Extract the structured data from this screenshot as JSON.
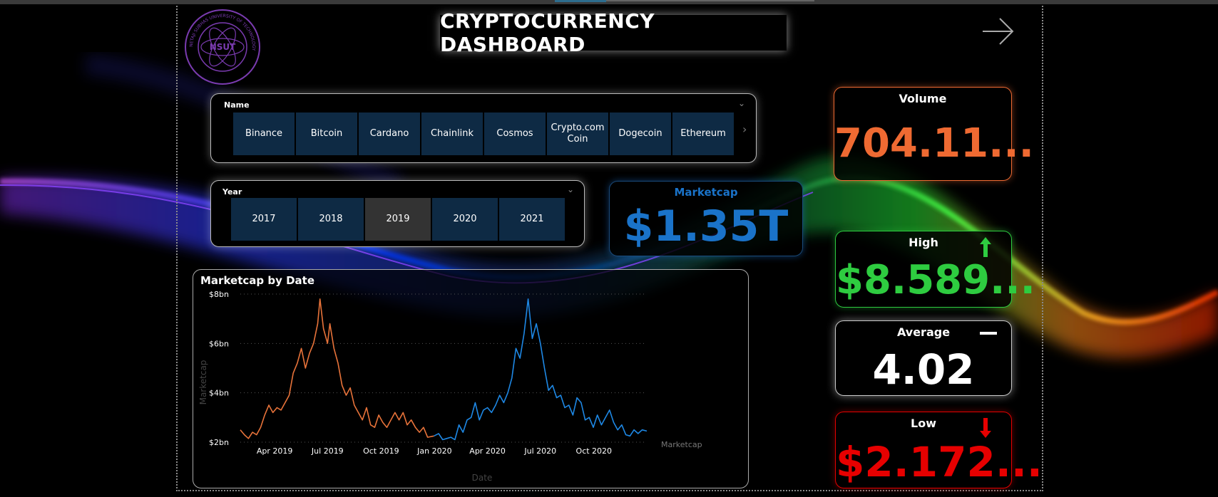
{
  "dashboard": {
    "title": "CRYPTOCURRENCY DASHBOARD"
  },
  "logo": {
    "text": "NSUT",
    "ring_text": "NETAJI SUBHAS UNIVERSITY OF TECHNOLOGY"
  },
  "name_slicer": {
    "title": "Name",
    "items": [
      "Binance",
      "Bitcoin",
      "Cardano",
      "Chainlink",
      "Cosmos",
      "Crypto.com Coin",
      "Dogecoin",
      "Ethereum"
    ]
  },
  "year_slicer": {
    "title": "Year",
    "items": [
      "2017",
      "2018",
      "2019",
      "2020",
      "2021"
    ],
    "selected": "2019"
  },
  "cards": {
    "marketcap": {
      "label": "Marketcap",
      "value": "$1.35T"
    },
    "volume": {
      "label": "Volume",
      "value": "704.11..."
    },
    "high": {
      "label": "High",
      "value": "$8.589..."
    },
    "average": {
      "label": "Average",
      "value": "4.02"
    },
    "low": {
      "label": "Low",
      "value": "$2.172..."
    }
  },
  "colors": {
    "series_2019": "#e8733a",
    "series_2020": "#1e88e5",
    "volume": "#ef6a32",
    "marketcap": "#1a73c9",
    "high": "#2ecc40",
    "low": "#e60000",
    "average": "#ffffff"
  },
  "icons": {
    "high": "arrow-up-icon",
    "average": "dash-icon",
    "low": "arrow-down-icon",
    "nav": "arrow-right-icon"
  },
  "chart_data": {
    "type": "line",
    "title": "Marketcap by Date",
    "xlabel": "Date",
    "ylabel": "Marketcap",
    "ylim": [
      2,
      8
    ],
    "y_ticks": [
      2,
      4,
      6,
      8
    ],
    "y_tick_labels": [
      "$2bn",
      "$4bn",
      "$6bn",
      "$8bn"
    ],
    "x_range": [
      "2019-02-01",
      "2020-12-31"
    ],
    "x_ticks": [
      "2019-04-01",
      "2019-07-01",
      "2019-10-01",
      "2020-01-01",
      "2020-04-01",
      "2020-07-01",
      "2020-10-01"
    ],
    "x_tick_labels": [
      "Apr 2019",
      "Jul 2019",
      "Oct 2019",
      "Jan 2020",
      "Apr 2020",
      "Jul 2020",
      "Oct 2020"
    ],
    "legend": "Marketcap",
    "grid": true,
    "series": [
      {
        "points": [
          [
            "2019-02-01",
            2.5
          ],
          [
            "2019-02-08",
            2.3
          ],
          [
            "2019-02-15",
            2.15
          ],
          [
            "2019-02-22",
            2.4
          ],
          [
            "2019-03-01",
            2.3
          ],
          [
            "2019-03-08",
            2.6
          ],
          [
            "2019-03-15",
            3.1
          ],
          [
            "2019-03-22",
            3.5
          ],
          [
            "2019-03-29",
            3.2
          ],
          [
            "2019-04-05",
            3.4
          ],
          [
            "2019-04-12",
            3.3
          ],
          [
            "2019-04-19",
            3.6
          ],
          [
            "2019-04-26",
            3.9
          ],
          [
            "2019-05-03",
            4.8
          ],
          [
            "2019-05-10",
            5.2
          ],
          [
            "2019-05-17",
            5.8
          ],
          [
            "2019-05-24",
            5.0
          ],
          [
            "2019-05-31",
            5.6
          ],
          [
            "2019-06-07",
            6.0
          ],
          [
            "2019-06-14",
            6.8
          ],
          [
            "2019-06-18",
            7.8
          ],
          [
            "2019-06-24",
            6.6
          ],
          [
            "2019-07-01",
            6.0
          ],
          [
            "2019-07-05",
            6.8
          ],
          [
            "2019-07-12",
            5.8
          ],
          [
            "2019-07-19",
            5.2
          ],
          [
            "2019-07-26",
            4.3
          ],
          [
            "2019-08-02",
            3.9
          ],
          [
            "2019-08-09",
            4.2
          ],
          [
            "2019-08-16",
            3.5
          ],
          [
            "2019-08-23",
            3.2
          ],
          [
            "2019-08-30",
            2.9
          ],
          [
            "2019-09-06",
            3.4
          ],
          [
            "2019-09-13",
            2.7
          ],
          [
            "2019-09-20",
            2.6
          ],
          [
            "2019-09-27",
            3.1
          ],
          [
            "2019-10-04",
            2.8
          ],
          [
            "2019-10-11",
            2.6
          ],
          [
            "2019-10-18",
            2.9
          ],
          [
            "2019-10-25",
            3.2
          ],
          [
            "2019-11-01",
            2.9
          ],
          [
            "2019-11-08",
            3.2
          ],
          [
            "2019-11-15",
            2.7
          ],
          [
            "2019-11-22",
            2.9
          ],
          [
            "2019-11-29",
            2.6
          ],
          [
            "2019-12-06",
            2.4
          ],
          [
            "2019-12-13",
            2.6
          ],
          [
            "2019-12-20",
            2.2
          ],
          [
            "2019-12-31",
            2.25
          ]
        ]
      },
      {
        "points": [
          [
            "2019-12-31",
            2.25
          ],
          [
            "2020-01-08",
            2.35
          ],
          [
            "2020-01-15",
            2.1
          ],
          [
            "2020-01-22",
            2.15
          ],
          [
            "2020-01-29",
            2.2
          ],
          [
            "2020-02-05",
            2.1
          ],
          [
            "2020-02-12",
            2.7
          ],
          [
            "2020-02-19",
            2.4
          ],
          [
            "2020-02-26",
            2.9
          ],
          [
            "2020-03-04",
            3.0
          ],
          [
            "2020-03-11",
            3.6
          ],
          [
            "2020-03-18",
            2.9
          ],
          [
            "2020-03-25",
            3.3
          ],
          [
            "2020-04-01",
            3.4
          ],
          [
            "2020-04-08",
            3.2
          ],
          [
            "2020-04-15",
            3.5
          ],
          [
            "2020-04-22",
            3.9
          ],
          [
            "2020-04-29",
            3.6
          ],
          [
            "2020-05-06",
            4.0
          ],
          [
            "2020-05-13",
            4.6
          ],
          [
            "2020-05-20",
            5.8
          ],
          [
            "2020-05-27",
            5.4
          ],
          [
            "2020-06-03",
            6.4
          ],
          [
            "2020-06-10",
            7.8
          ],
          [
            "2020-06-17",
            6.2
          ],
          [
            "2020-06-24",
            6.8
          ],
          [
            "2020-07-01",
            6.0
          ],
          [
            "2020-07-08",
            5.0
          ],
          [
            "2020-07-15",
            4.1
          ],
          [
            "2020-07-22",
            4.3
          ],
          [
            "2020-07-29",
            3.8
          ],
          [
            "2020-08-05",
            3.9
          ],
          [
            "2020-08-12",
            3.4
          ],
          [
            "2020-08-19",
            3.5
          ],
          [
            "2020-08-26",
            3.1
          ],
          [
            "2020-09-02",
            3.8
          ],
          [
            "2020-09-09",
            3.6
          ],
          [
            "2020-09-16",
            2.9
          ],
          [
            "2020-09-23",
            3.0
          ],
          [
            "2020-09-30",
            2.6
          ],
          [
            "2020-10-07",
            3.1
          ],
          [
            "2020-10-14",
            2.7
          ],
          [
            "2020-10-21",
            3.0
          ],
          [
            "2020-10-28",
            3.3
          ],
          [
            "2020-11-04",
            2.8
          ],
          [
            "2020-11-11",
            2.5
          ],
          [
            "2020-11-18",
            2.7
          ],
          [
            "2020-11-25",
            2.3
          ],
          [
            "2020-12-02",
            2.25
          ],
          [
            "2020-12-09",
            2.5
          ],
          [
            "2020-12-16",
            2.35
          ],
          [
            "2020-12-23",
            2.5
          ],
          [
            "2020-12-31",
            2.45
          ]
        ]
      }
    ]
  }
}
